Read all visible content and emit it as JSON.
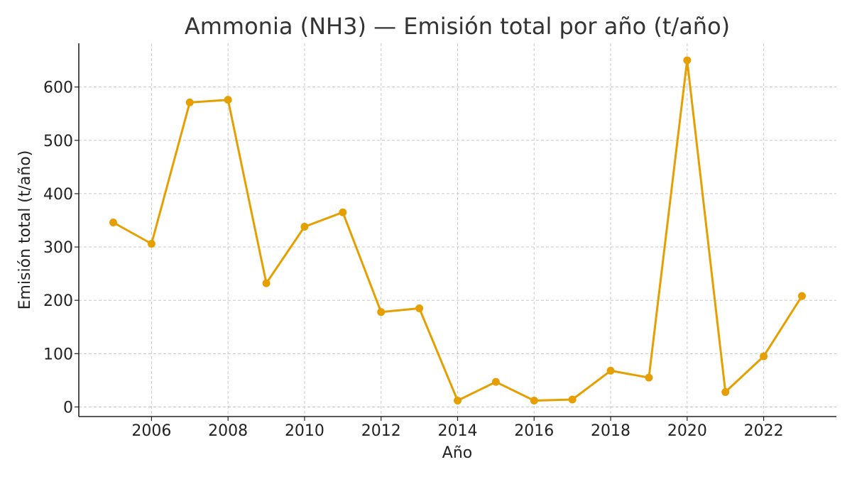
{
  "chart_data": {
    "type": "line",
    "title": "Ammonia (NH3) — Emisión total por año (t/año)",
    "xlabel": "Año",
    "ylabel": "Emisión total (t/año)",
    "x_ticks": [
      2006,
      2008,
      2010,
      2012,
      2014,
      2016,
      2018,
      2020,
      2022
    ],
    "y_ticks": [
      0,
      100,
      200,
      300,
      400,
      500,
      600
    ],
    "xlim": [
      2004.1,
      2023.9
    ],
    "ylim": [
      -18,
      682
    ],
    "grid": true,
    "color": "#E69F00",
    "series": [
      {
        "x": [
          2005,
          2006,
          2007,
          2008,
          2009,
          2010,
          2011,
          2012,
          2013,
          2014,
          2015,
          2016,
          2017,
          2018,
          2019,
          2020,
          2021,
          2022,
          2023
        ],
        "y": [
          346,
          306,
          571,
          576,
          232,
          338,
          365,
          178,
          185,
          12,
          47,
          12,
          14,
          68,
          55,
          650,
          28,
          95,
          208
        ]
      }
    ]
  }
}
